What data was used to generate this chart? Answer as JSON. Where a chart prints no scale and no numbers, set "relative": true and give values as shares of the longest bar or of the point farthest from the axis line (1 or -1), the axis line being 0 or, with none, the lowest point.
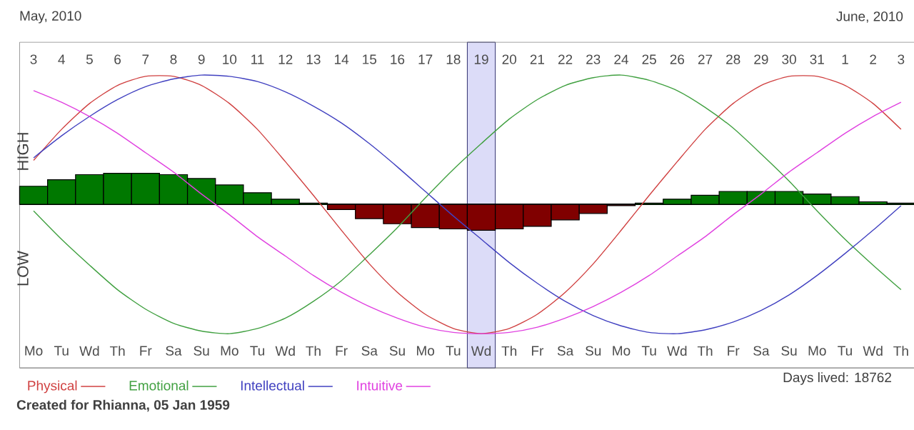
{
  "chart_data": {
    "type": "line",
    "relative": true,
    "legend": "bottom",
    "categories": [
      "Mo",
      "Tu",
      "Wd",
      "Th",
      "Fr",
      "Sa",
      "Su",
      "Mo",
      "Tu",
      "Wd",
      "Th",
      "Fr",
      "Sa",
      "Su",
      "Mo",
      "Tu",
      "Wd",
      "Th",
      "Fr",
      "Sa",
      "Su",
      "Mo",
      "Tu",
      "Wd",
      "Th",
      "Fr",
      "Sa",
      "Su",
      "Mo",
      "Tu",
      "Wd",
      "Th"
    ],
    "x2lim": [
      "2010-05-02T12:00",
      "2010-06-03T12:00"
    ],
    "x2ticks": [
      {
        "value": "2010-05-03",
        "label": "3"
      },
      {
        "value": "2010-05-04",
        "label": "4"
      },
      {
        "value": "2010-05-05",
        "label": "5"
      },
      {
        "value": "2010-05-06",
        "label": "6"
      },
      {
        "value": "2010-05-07",
        "label": "7"
      },
      {
        "value": "2010-05-08",
        "label": "8"
      },
      {
        "value": "2010-05-09",
        "label": "9"
      },
      {
        "value": "2010-05-10",
        "label": "10"
      },
      {
        "value": "2010-05-11",
        "label": "11"
      },
      {
        "value": "2010-05-12",
        "label": "12"
      },
      {
        "value": "2010-05-13",
        "label": "13"
      },
      {
        "value": "2010-05-14",
        "label": "14"
      },
      {
        "value": "2010-05-15",
        "label": "15"
      },
      {
        "value": "2010-05-16",
        "label": "16"
      },
      {
        "value": "2010-05-17",
        "label": "17"
      },
      {
        "value": "2010-05-18",
        "label": "18"
      },
      {
        "value": "2010-05-19",
        "label": "19"
      },
      {
        "value": "2010-05-20",
        "label": "20"
      },
      {
        "value": "2010-05-21",
        "label": "21"
      },
      {
        "value": "2010-05-22",
        "label": "22"
      },
      {
        "value": "2010-05-23",
        "label": "23"
      },
      {
        "value": "2010-05-24",
        "label": "24"
      },
      {
        "value": "2010-05-25",
        "label": "25"
      },
      {
        "value": "2010-05-26",
        "label": "26"
      },
      {
        "value": "2010-05-27",
        "label": "27"
      },
      {
        "value": "2010-05-28",
        "label": "28"
      },
      {
        "value": "2010-05-29",
        "label": "29"
      },
      {
        "value": "2010-05-30",
        "label": "30"
      },
      {
        "value": "2010-05-31",
        "label": "31"
      },
      {
        "value": "2010-06-01",
        "label": "1"
      },
      {
        "value": "2010-06-02",
        "label": "2"
      },
      {
        "value": "2010-06-03",
        "label": "3"
      }
    ],
    "series": [
      {
        "type": "bar",
        "colors": [
          "#007800",
          "#007800",
          "#007800",
          "#007800",
          "#007800",
          "#007800",
          "#007800",
          "#007800",
          "#007800",
          "#007800",
          "#007800",
          "#800000",
          "#800000",
          "#800000",
          "#800000",
          "#800000",
          "#800000",
          "#800000",
          "#800000",
          "#800000",
          "#800000",
          "#800000",
          "#007800",
          "#007800",
          "#007800",
          "#007800",
          "#007800",
          "#007800",
          "#007800",
          "#007800",
          "#007800",
          "#007800"
        ],
        "values": [
          0.14,
          0.19,
          0.23,
          0.24,
          0.24,
          0.23,
          0.2,
          0.15,
          0.09,
          0.04,
          0.01,
          -0.04,
          -0.11,
          -0.15,
          -0.18,
          -0.19,
          -0.2,
          -0.19,
          -0.17,
          -0.12,
          -0.07,
          -0.01,
          0.01,
          0.04,
          0.07,
          0.1,
          0.1,
          0.1,
          0.08,
          0.06,
          0.02,
          0.01
        ]
      },
      {
        "name": "Physical",
        "color": "#d04040",
        "values": [
          0.34,
          0.58,
          0.78,
          0.92,
          0.99,
          0.99,
          0.92,
          0.78,
          0.58,
          0.33,
          0.07,
          -0.2,
          -0.46,
          -0.68,
          -0.85,
          -0.96,
          -1.0,
          -0.96,
          -0.85,
          -0.68,
          -0.46,
          -0.2,
          0.07,
          0.33,
          0.58,
          0.78,
          0.92,
          0.99,
          0.99,
          0.92,
          0.78,
          0.58
        ]
      },
      {
        "name": "Emotional",
        "color": "#40a040",
        "values": [
          -0.05,
          -0.27,
          -0.47,
          -0.66,
          -0.81,
          -0.92,
          -0.98,
          -1.0,
          -0.96,
          -0.88,
          -0.75,
          -0.59,
          -0.39,
          -0.18,
          0.05,
          0.27,
          0.47,
          0.66,
          0.81,
          0.92,
          0.98,
          1.0,
          0.96,
          0.88,
          0.75,
          0.59,
          0.39,
          0.18,
          -0.05,
          -0.27,
          -0.47,
          -0.66
        ]
      },
      {
        "name": "Intellectual",
        "color": "#4040c0",
        "values": [
          0.36,
          0.53,
          0.68,
          0.81,
          0.91,
          0.97,
          1.0,
          0.99,
          0.95,
          0.87,
          0.76,
          0.63,
          0.47,
          0.29,
          0.1,
          -0.09,
          -0.27,
          -0.45,
          -0.61,
          -0.75,
          -0.86,
          -0.94,
          -0.99,
          -1.0,
          -0.97,
          -0.91,
          -0.82,
          -0.7,
          -0.55,
          -0.38,
          -0.2,
          -0.01
        ]
      },
      {
        "name": "Intuitive",
        "color": "#e040e0",
        "values": [
          0.88,
          0.79,
          0.68,
          0.55,
          0.4,
          0.25,
          0.08,
          -0.08,
          -0.25,
          -0.4,
          -0.55,
          -0.68,
          -0.79,
          -0.88,
          -0.95,
          -0.99,
          -1.0,
          -0.99,
          -0.95,
          -0.88,
          -0.79,
          -0.68,
          -0.55,
          -0.4,
          -0.25,
          -0.08,
          0.08,
          0.25,
          0.4,
          0.55,
          0.68,
          0.79
        ]
      }
    ],
    "bands": [
      {
        "axis": "x2",
        "from": "2010-05-18T12:00",
        "to": "2010-05-19T12:00",
        "color": "#dcdcf8"
      }
    ],
    "annotations": [
      "May, 2010",
      "June, 2010",
      "HIGH",
      "LOW",
      "Created for Rhianna, 05 Jan 1959",
      "Days lived: 18762"
    ]
  }
}
